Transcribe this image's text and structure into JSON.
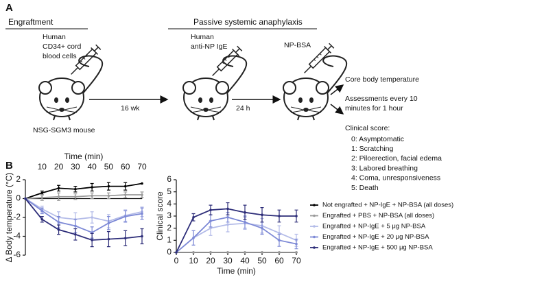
{
  "panel_a": {
    "label": "A",
    "headers": [
      "Engraftment",
      "Passive systemic anaphylaxis"
    ],
    "cells": [
      "Human",
      "CD34+ cord",
      "blood cells"
    ],
    "ige": [
      "Human",
      "anti-NP IgE"
    ],
    "challenge": "NP-BSA",
    "mouse": "NSG-SGM3 mouse",
    "arrows": [
      "16 wk",
      "24 h"
    ],
    "readout": [
      "Core body temperature",
      "Assessments every 10",
      "minutes for 1 hour"
    ],
    "score_title": "Clinical score:",
    "scores": [
      "0: Asymptomatic",
      "1: Scratching",
      "2: Piloerection, facial edema",
      "3: Labored breathing",
      "4: Coma, unresponsiveness",
      "5: Death"
    ]
  },
  "panel_b": {
    "label": "B"
  },
  "chart_data": [
    {
      "type": "line",
      "xlabel": "Time (min)",
      "ylabel": "Δ Body temperature (°C)",
      "xaxis_position": "top",
      "x": [
        0,
        10,
        20,
        30,
        40,
        50,
        60,
        70
      ],
      "xlim": [
        0,
        70
      ],
      "xticks": [
        10,
        20,
        30,
        40,
        50,
        60,
        70
      ],
      "ylim": [
        -6,
        2
      ],
      "yticks": [
        2,
        0,
        -2,
        -4,
        -6
      ],
      "series": [
        {
          "name": "Not engrafted + NP-IgE + NP-BSA (all doses)",
          "color": "#000000",
          "values": [
            0,
            0.6,
            1.1,
            1.0,
            1.2,
            1.3,
            1.3,
            1.6
          ],
          "errors": [
            0,
            0.2,
            0.3,
            0.3,
            0.4,
            0.4,
            0.4,
            0
          ]
        },
        {
          "name": "Engrafted + PBS + NP-BSA (all doses)",
          "color": "#9a9a9a",
          "values": [
            0,
            0.1,
            0.2,
            0.2,
            0.3,
            0.3,
            0.4,
            0.4
          ],
          "errors": [
            0,
            0.3,
            0.4,
            0.3,
            0.3,
            0.3,
            0.3,
            0.3
          ]
        },
        {
          "name": "Engrafted + NP-IgE + 5 μg NP-BSA",
          "color": "#b3bbe8",
          "values": [
            0,
            -1.1,
            -2.0,
            -2.2,
            -2.0,
            -2.4,
            -1.8,
            -1.4
          ],
          "errors": [
            0,
            0.3,
            0.6,
            0.7,
            0.6,
            0.7,
            0.6,
            0.5
          ]
        },
        {
          "name": "Engrafted + NP-IgE + 20 μg NP-BSA",
          "color": "#7d89d6",
          "values": [
            0,
            -1.3,
            -2.5,
            -2.9,
            -3.6,
            -2.6,
            -1.9,
            -1.6
          ],
          "errors": [
            0,
            0.3,
            0.6,
            0.7,
            0.6,
            0.7,
            0.6,
            0.6
          ]
        },
        {
          "name": "Engrafted + NP-IgE + 500 μg NP-BSA",
          "color": "#2c2c78",
          "values": [
            0,
            -2.2,
            -3.3,
            -3.8,
            -4.4,
            -4.3,
            -4.2,
            -4.0
          ],
          "errors": [
            0,
            0.3,
            0.5,
            0.6,
            0.7,
            0.8,
            0.8,
            0.8
          ]
        }
      ]
    },
    {
      "type": "line",
      "xlabel": "Time (min)",
      "ylabel": "Clinical score",
      "xaxis_position": "bottom",
      "x": [
        0,
        10,
        20,
        30,
        40,
        50,
        60,
        70
      ],
      "xlim": [
        0,
        70
      ],
      "xticks": [
        0,
        10,
        20,
        30,
        40,
        50,
        60,
        70
      ],
      "ylim": [
        0,
        6
      ],
      "yticks": [
        0,
        1,
        2,
        3,
        4,
        5,
        6
      ],
      "series": [
        {
          "color": "#000000",
          "values": [
            0,
            0,
            0,
            0,
            0,
            0,
            0,
            0
          ],
          "errors": [
            0,
            0,
            0,
            0,
            0,
            0,
            0,
            0
          ]
        },
        {
          "color": "#9a9a9a",
          "values": [
            0,
            0,
            0,
            0,
            0,
            0,
            0,
            0
          ],
          "errors": [
            0,
            0,
            0,
            0,
            0,
            0,
            0,
            0
          ]
        },
        {
          "color": "#b3bbe8",
          "values": [
            0,
            1.2,
            2.0,
            2.3,
            2.4,
            2.2,
            1.6,
            1.0
          ],
          "errors": [
            0,
            0.6,
            0.6,
            0.6,
            0.5,
            0.6,
            0.6,
            0.5
          ]
        },
        {
          "color": "#7d89d6",
          "values": [
            0,
            1.2,
            2.6,
            2.9,
            2.5,
            2.0,
            1.0,
            0.7
          ],
          "errors": [
            0,
            0.6,
            0.5,
            0.4,
            0.5,
            0.5,
            0.5,
            0.4
          ]
        },
        {
          "color": "#2c2c78",
          "values": [
            0,
            2.9,
            3.5,
            3.6,
            3.3,
            3.1,
            3.0,
            3.0
          ],
          "errors": [
            0,
            0.3,
            0.4,
            0.5,
            0.6,
            0.6,
            0.5,
            0.5
          ]
        }
      ]
    }
  ]
}
